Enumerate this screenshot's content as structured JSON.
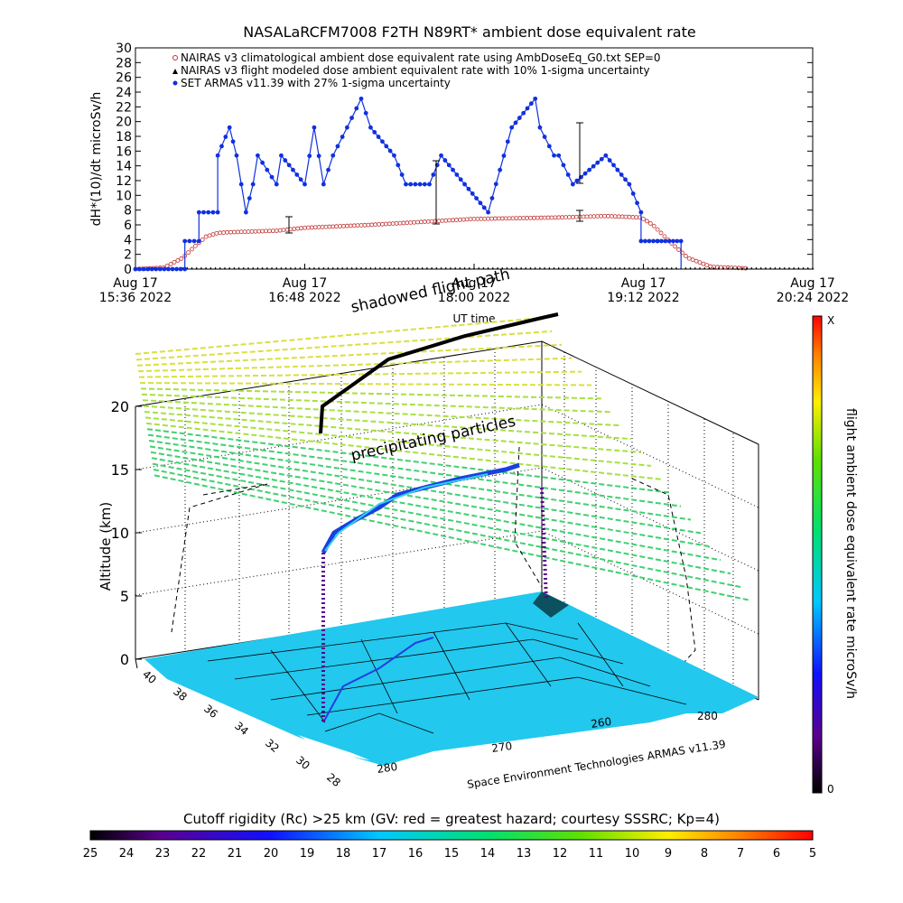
{
  "title": "NASALaRCFM7008  F2TH N89RT* ambient dose equivalent rate",
  "top_chart": {
    "ylabel": "dH*(10)/dt microSv/h",
    "xlabel": "UT time",
    "yticks": [
      0,
      2,
      4,
      6,
      8,
      10,
      12,
      14,
      16,
      18,
      20,
      22,
      24,
      26,
      28,
      30
    ],
    "ylim": [
      0,
      30
    ],
    "xticks": [
      {
        "line1": "Aug 17",
        "line2": "15:36 2022"
      },
      {
        "line1": "Aug 17",
        "line2": "16:48 2022"
      },
      {
        "line1": "Aug 17",
        "line2": "18:00 2022"
      },
      {
        "line1": "Aug 17",
        "line2": "19:12 2022"
      },
      {
        "line1": "Aug 17",
        "line2": "20:24 2022"
      }
    ],
    "legend": [
      "NAIRAS v3 climatological ambient dose equivalent rate using AmbDoseEq_G0.txt SEP=0",
      "NAIRAS v3 flight modeled dose ambient equivalent rate with 10% 1-sigma uncertainty",
      "SET ARMAS v11.39 with 27% 1-sigma uncertainty"
    ],
    "colors": {
      "nairas": "#c03030",
      "armas": "#1030e0",
      "axis": "#000000"
    }
  },
  "chart_data": [
    {
      "type": "line",
      "title": "NASALaRCFM7008  F2TH N89RT* ambient dose equivalent rate",
      "xlabel": "UT time",
      "ylabel": "dH*(10)/dt microSv/h",
      "xlim": [
        "15:36",
        "20:24"
      ],
      "ylim": [
        0,
        30
      ],
      "x_unit": "minutes after 15:36 UT, Aug 17 2022",
      "series": [
        {
          "name": "NAIRAS v3 climatological ambient dose equivalent rate using AmbDoseEq_G0.txt SEP=0",
          "x": [
            0,
            12,
            20,
            25,
            30,
            35,
            40,
            60,
            72,
            100,
            144,
            180,
            200,
            215,
            220,
            228,
            235,
            245,
            260
          ],
          "y": [
            0,
            0.2,
            1.5,
            3.0,
            4.4,
            4.9,
            5.0,
            5.2,
            5.6,
            6.0,
            6.8,
            7.0,
            7.2,
            7.0,
            6.0,
            3.5,
            1.5,
            0.3,
            0.1
          ]
        },
        {
          "name": "NAIRAS v3 flight modeled dose ambient equivalent rate with 10% 1-sigma uncertainty",
          "x": [
            0,
            260
          ],
          "y": [
            0,
            0
          ]
        },
        {
          "name": "SET ARMAS v11.39 with 27% 1-sigma uncertainty",
          "x": [
            0,
            21,
            21,
            27,
            27,
            35,
            35,
            40,
            43,
            45,
            47,
            50,
            52,
            60,
            62,
            72,
            76,
            80,
            84,
            90,
            96,
            100,
            110,
            115,
            119,
            125,
            130,
            140,
            150,
            160,
            170,
            172,
            178,
            180,
            186,
            200,
            210,
            215,
            215,
            222,
            222,
            232,
            232
          ],
          "y": [
            0,
            0,
            3.8,
            3.8,
            7.7,
            7.7,
            15.4,
            19.2,
            15.4,
            11.5,
            7.7,
            11.5,
            15.4,
            11.5,
            15.4,
            11.5,
            19.2,
            11.5,
            15.4,
            19.2,
            23.1,
            19.2,
            15.4,
            11.5,
            11.5,
            11.5,
            15.4,
            11.5,
            7.7,
            19.2,
            23.1,
            19.2,
            15.4,
            15.4,
            11.5,
            15.4,
            11.5,
            7.7,
            3.8,
            3.8,
            3.8,
            3.8,
            0.0
          ]
        }
      ]
    },
    {
      "type": "scatter",
      "title": "",
      "zlabel": "Altitude (km)",
      "zticks": [
        0,
        5,
        10,
        15,
        20
      ],
      "lat_ticks": [
        40,
        38,
        36,
        34,
        32,
        30,
        28
      ],
      "lon_ticks": [
        260,
        270,
        280
      ],
      "colorbar_right": {
        "label": "flight ambient dose equivalent rate microSv/h",
        "top": "X",
        "bottom": "0"
      },
      "colorbar_bottom": {
        "label": "Cutoff rigidity (Rc) >25 km (GV: red = greatest hazard; courtesy SSSRC; Kp=4)",
        "ticks": [
          25,
          24,
          23,
          22,
          21,
          20,
          19,
          18,
          17,
          16,
          15,
          14,
          13,
          12,
          11,
          10,
          9,
          8,
          7,
          6,
          5
        ]
      }
    }
  ],
  "annotations": {
    "shadowed": "shadowed flight path",
    "precip": "precipitating particles",
    "credit": "Space Environment Technologies ARMAS v11.39"
  }
}
